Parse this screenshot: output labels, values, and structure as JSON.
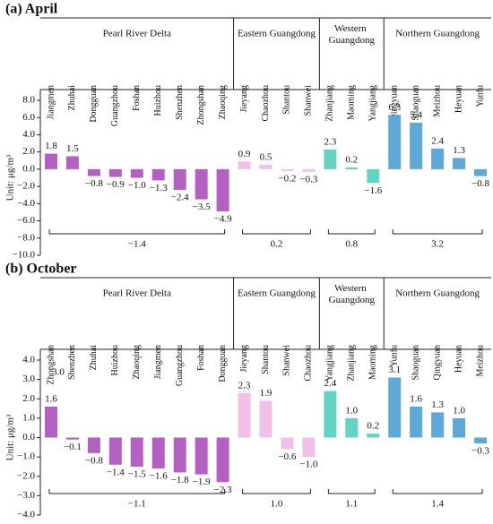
{
  "chart_data": [
    {
      "type": "bar",
      "title": "(a) April",
      "y_label": "Unit:  μg/m³",
      "ylim": [
        -10,
        8
      ],
      "yticks": [
        {
          "value": -10,
          "label": "−10.0"
        },
        {
          "value": -8,
          "label": "−8.0"
        },
        {
          "value": -6,
          "label": "−6.0"
        },
        {
          "value": -4,
          "label": "−4.0"
        },
        {
          "value": -2,
          "label": "−2.0"
        },
        {
          "value": 0,
          "label": "0.0"
        },
        {
          "value": 2,
          "label": "2.0"
        },
        {
          "value": 4,
          "label": "4.0"
        },
        {
          "value": 6,
          "label": "6.0"
        },
        {
          "value": 8,
          "label": "8.0"
        }
      ],
      "groups": [
        {
          "name": "Pearl River Delta",
          "color": "#b45fc2",
          "categories": [
            "Jiangmen",
            "Zhuhai",
            "Dongguan",
            "Guangzhou",
            "Foshan",
            "Huizhou",
            "Shenzhen",
            "Zhongshan",
            "Zhaoqing"
          ],
          "values": [
            1.8,
            1.5,
            -0.8,
            -0.9,
            -1.0,
            -1.3,
            -2.4,
            -3.5,
            -4.9
          ],
          "value_labels": [
            "1.8",
            "1.5",
            "−0.8",
            "−0.9",
            "−1.0",
            "−1.3",
            "−2.4",
            "−3.5",
            "−4.9"
          ],
          "average": -1.4,
          "average_label": "−1.4"
        },
        {
          "name": "Eastern Guangdong",
          "color": "#f2bfe8",
          "categories": [
            "Jieyang",
            "Chaozhou",
            "Shantou",
            "Shanwei"
          ],
          "values": [
            0.9,
            0.5,
            -0.2,
            -0.3
          ],
          "value_labels": [
            "0.9",
            "0.5",
            "−0.2",
            "−0.3"
          ],
          "average": 0.2,
          "average_label": "0.2"
        },
        {
          "name": "Western Guangdong",
          "color": "#62d4c2",
          "categories": [
            "Zhanjiang",
            "Maoming",
            "Yangjiang"
          ],
          "values": [
            2.3,
            0.2,
            -1.6
          ],
          "value_labels": [
            "2.3",
            "0.2",
            "−1.6"
          ],
          "average": 0.8,
          "average_label": "0.8"
        },
        {
          "name": "Northern Guangdong",
          "color": "#5ca9d8",
          "categories": [
            "Qingyuan",
            "Shaoguan",
            "Meizhou",
            "Heyuan",
            "Yunfu"
          ],
          "values": [
            6.3,
            5.4,
            2.4,
            1.3,
            -0.8
          ],
          "value_labels": [
            "6.3",
            "5.4",
            "2.4",
            "1.3",
            "−0.8"
          ],
          "average": 3.2,
          "average_label": "3.2"
        }
      ]
    },
    {
      "type": "bar",
      "title": "(b) October",
      "y_label": "Unit:  μg/m³",
      "ylim": [
        -4,
        4
      ],
      "yticks": [
        {
          "value": -4,
          "label": "−4.0"
        },
        {
          "value": -3,
          "label": "−3.0"
        },
        {
          "value": -2,
          "label": "−2.0"
        },
        {
          "value": -1,
          "label": "−1.0"
        },
        {
          "value": 0,
          "label": "0.0"
        },
        {
          "value": 1,
          "label": "1.0"
        },
        {
          "value": 2,
          "label": "2.0"
        },
        {
          "value": 3,
          "label": "3.0"
        },
        {
          "value": 4,
          "label": "4.0"
        }
      ],
      "annotations": [
        "3.0"
      ],
      "groups": [
        {
          "name": "Pearl River Delta",
          "color": "#b45fc2",
          "categories": [
            "Zhongshan",
            "Shenzhen",
            "Zhuhai",
            "Huizhou",
            "Zhaoqing",
            "Jiangmen",
            "Guangzhou",
            "Foshan",
            "Dongguan"
          ],
          "values": [
            1.6,
            -0.1,
            -0.8,
            -1.4,
            -1.5,
            -1.6,
            -1.8,
            -1.9,
            -2.3
          ],
          "value_labels": [
            "1.6",
            "−0.1",
            "−0.8",
            "−1.4",
            "−1.5",
            "−1.6",
            "−1.8",
            "−1.9",
            "−2.3"
          ],
          "average": -1.1,
          "average_label": "−1.1"
        },
        {
          "name": "Eastern Guangdong",
          "color": "#f2bfe8",
          "categories": [
            "Jieyang",
            "Shantou",
            "Shanwei",
            "Chaozhou"
          ],
          "values": [
            2.3,
            1.9,
            -0.6,
            -1.0
          ],
          "value_labels": [
            "2.3",
            "1.9",
            "−0.6",
            "−1.0"
          ],
          "average": 1.0,
          "average_label": "1.0"
        },
        {
          "name": "Western Guangdong",
          "color": "#62d4c2",
          "categories": [
            "Yangjiang",
            "Zhanjiang",
            "Maoming"
          ],
          "values": [
            2.4,
            1.0,
            0.2
          ],
          "value_labels": [
            "2.4",
            "1.0",
            "0.2"
          ],
          "average": 1.1,
          "average_label": "1.1"
        },
        {
          "name": "Northern Guangdong",
          "color": "#5ca9d8",
          "categories": [
            "Yunfu",
            "Shaoguan",
            "Qingyuan",
            "Heyuan",
            "Meizhou"
          ],
          "values": [
            3.1,
            1.6,
            1.3,
            1.0,
            -0.3
          ],
          "value_labels": [
            "3.1",
            "1.6",
            "1.3",
            "1.0",
            "−0.3"
          ],
          "average": 1.4,
          "average_label": "1.4"
        }
      ]
    }
  ]
}
